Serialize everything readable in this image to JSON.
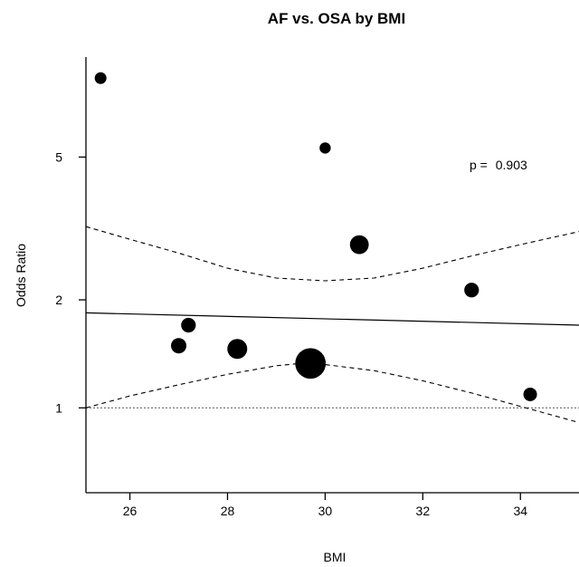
{
  "chart_data": {
    "type": "scatter",
    "title": "AF vs. OSA by BMI",
    "xlabel": "BMI",
    "ylabel": "Odds Ratio",
    "y_scale": "log",
    "xlim": [
      25.1,
      35.2
    ],
    "ylim": [
      0.58,
      9.5
    ],
    "x_ticks": [
      26,
      28,
      30,
      32,
      34
    ],
    "y_ticks": [
      1,
      2,
      5
    ],
    "x_tick_labels": [
      "26",
      "28",
      "30",
      "32",
      "34"
    ],
    "y_tick_labels": [
      "1",
      "2",
      "5"
    ],
    "annotation": {
      "p_label": "p =",
      "p_value": "0.903"
    },
    "points": [
      {
        "x": 25.4,
        "y": 8.3,
        "weight": 1.0
      },
      {
        "x": 27.0,
        "y": 1.49,
        "weight": 1.3
      },
      {
        "x": 27.2,
        "y": 1.7,
        "weight": 1.25
      },
      {
        "x": 28.2,
        "y": 1.46,
        "weight": 1.7
      },
      {
        "x": 29.7,
        "y": 1.33,
        "weight": 2.6
      },
      {
        "x": 30.0,
        "y": 5.3,
        "weight": 0.95
      },
      {
        "x": 30.7,
        "y": 2.85,
        "weight": 1.6
      },
      {
        "x": 33.0,
        "y": 2.13,
        "weight": 1.25
      },
      {
        "x": 34.2,
        "y": 1.09,
        "weight": 1.15
      }
    ],
    "regression_line": {
      "x": [
        25.1,
        35.2
      ],
      "y": [
        1.84,
        1.7
      ]
    },
    "ci_upper": {
      "x": [
        25.1,
        26,
        27,
        28,
        29,
        29.5,
        30,
        31,
        32,
        33,
        34,
        35.2
      ],
      "y": [
        3.2,
        2.95,
        2.7,
        2.45,
        2.3,
        2.28,
        2.26,
        2.3,
        2.45,
        2.65,
        2.85,
        3.1
      ]
    },
    "ci_lower": {
      "x": [
        25.1,
        26,
        27,
        28,
        29,
        29.5,
        30,
        31,
        32,
        33,
        34,
        35.2
      ],
      "y": [
        1.0,
        1.08,
        1.16,
        1.24,
        1.31,
        1.33,
        1.32,
        1.27,
        1.19,
        1.1,
        1.01,
        0.91
      ]
    },
    "reference_line": {
      "y": 1
    },
    "grid": false,
    "legend": "none"
  }
}
